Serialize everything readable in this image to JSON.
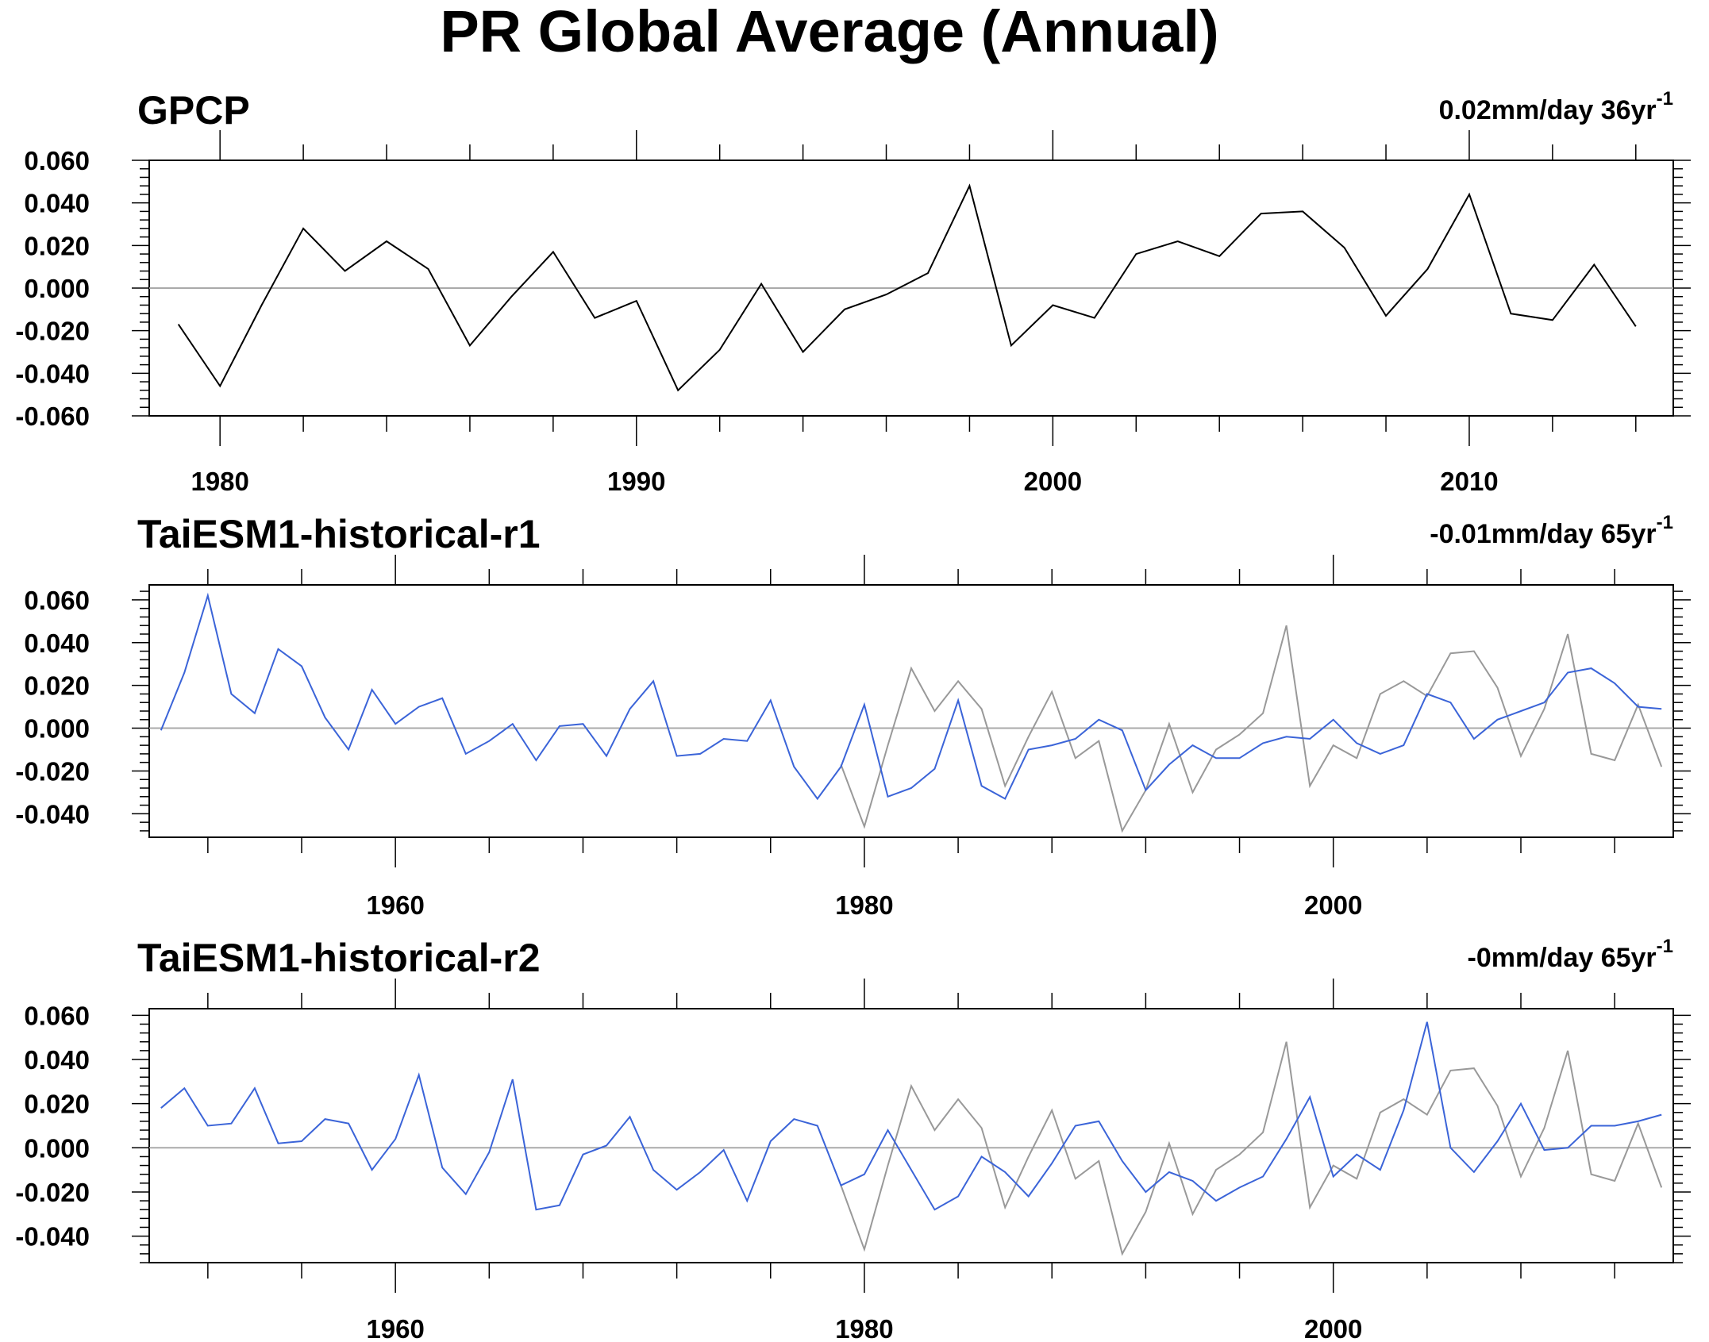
{
  "figure": {
    "title": "PR Global Average (Annual)"
  },
  "colors": {
    "observed": "#000000",
    "reference": "#999999",
    "model": "#3b64d8",
    "axis": "#000000",
    "zero_line": "#aaaaaa"
  },
  "chart_data": [
    {
      "type": "line",
      "title": "GPCP",
      "trend_label": "0.02mm/day 36yr",
      "trend_sup": "-1",
      "xlim": [
        1978.3,
        2014.9
      ],
      "ylim": [
        -0.06,
        0.06
      ],
      "xticks": [
        1980,
        1990,
        2000,
        2010
      ],
      "yticks": [
        "0.060",
        "0.040",
        "0.020",
        "0.000",
        "-0.020",
        "-0.040",
        "-0.060"
      ],
      "series": [
        {
          "role": "observed",
          "x": [
            1979,
            1980,
            1981,
            1982,
            1983,
            1984,
            1985,
            1986,
            1987,
            1988,
            1989,
            1990,
            1991,
            1992,
            1993,
            1994,
            1995,
            1996,
            1997,
            1998,
            1999,
            2000,
            2001,
            2002,
            2003,
            2004,
            2005,
            2006,
            2007,
            2008,
            2009,
            2010,
            2011,
            2012,
            2013,
            2014
          ],
          "values": [
            -0.017,
            -0.046,
            -0.008,
            0.028,
            0.008,
            0.022,
            0.009,
            -0.027,
            -0.004,
            0.017,
            -0.014,
            -0.006,
            -0.048,
            -0.029,
            0.002,
            -0.03,
            -0.01,
            -0.003,
            0.007,
            0.048,
            -0.027,
            -0.008,
            -0.014,
            0.016,
            0.022,
            0.015,
            0.035,
            0.036,
            0.019,
            -0.013,
            0.009,
            0.044,
            -0.012,
            -0.015,
            0.011,
            -0.018
          ]
        }
      ]
    },
    {
      "type": "line",
      "title": "TaiESM1-historical-r1",
      "trend_label": "-0.01mm/day 65yr",
      "trend_sup": "-1",
      "xlim": [
        1949.5,
        2014.5
      ],
      "ylim": [
        -0.051,
        0.067
      ],
      "xticks": [
        1960,
        1980,
        2000
      ],
      "yticks": [
        "0.060",
        "0.040",
        "0.020",
        "0.000",
        "-0.020",
        "-0.040"
      ],
      "series": [
        {
          "role": "reference",
          "x": [
            1979,
            1980,
            1981,
            1982,
            1983,
            1984,
            1985,
            1986,
            1987,
            1988,
            1989,
            1990,
            1991,
            1992,
            1993,
            1994,
            1995,
            1996,
            1997,
            1998,
            1999,
            2000,
            2001,
            2002,
            2003,
            2004,
            2005,
            2006,
            2007,
            2008,
            2009,
            2010,
            2011,
            2012,
            2013,
            2014
          ],
          "values": [
            -0.017,
            -0.046,
            -0.008,
            0.028,
            0.008,
            0.022,
            0.009,
            -0.027,
            -0.004,
            0.017,
            -0.014,
            -0.006,
            -0.048,
            -0.029,
            0.002,
            -0.03,
            -0.01,
            -0.003,
            0.007,
            0.048,
            -0.027,
            -0.008,
            -0.014,
            0.016,
            0.022,
            0.015,
            0.035,
            0.036,
            0.019,
            -0.013,
            0.009,
            0.044,
            -0.012,
            -0.015,
            0.011,
            -0.018
          ]
        },
        {
          "role": "model",
          "x": [
            1950,
            1951,
            1952,
            1953,
            1954,
            1955,
            1956,
            1957,
            1958,
            1959,
            1960,
            1961,
            1962,
            1963,
            1964,
            1965,
            1966,
            1967,
            1968,
            1969,
            1970,
            1971,
            1972,
            1973,
            1974,
            1975,
            1976,
            1977,
            1978,
            1979,
            1980,
            1981,
            1982,
            1983,
            1984,
            1985,
            1986,
            1987,
            1988,
            1989,
            1990,
            1991,
            1992,
            1993,
            1994,
            1995,
            1996,
            1997,
            1998,
            1999,
            2000,
            2001,
            2002,
            2003,
            2004,
            2005,
            2006,
            2007,
            2008,
            2009,
            2010,
            2011,
            2012,
            2013,
            2014
          ],
          "values": [
            -0.001,
            0.026,
            0.062,
            0.016,
            0.007,
            0.037,
            0.029,
            0.005,
            -0.01,
            0.018,
            0.002,
            0.01,
            0.014,
            -0.012,
            -0.006,
            0.002,
            -0.015,
            0.001,
            0.002,
            -0.013,
            0.009,
            0.022,
            -0.013,
            -0.012,
            -0.005,
            -0.006,
            0.013,
            -0.018,
            -0.033,
            -0.018,
            0.011,
            -0.032,
            -0.028,
            -0.019,
            0.013,
            -0.027,
            -0.033,
            -0.01,
            -0.008,
            -0.005,
            0.004,
            -0.001,
            -0.029,
            -0.017,
            -0.008,
            -0.014,
            -0.014,
            -0.007,
            -0.004,
            -0.005,
            0.004,
            -0.007,
            -0.012,
            -0.008,
            0.016,
            0.012,
            -0.005,
            0.004,
            0.008,
            0.012,
            0.026,
            0.028,
            0.021,
            0.01,
            0.009
          ]
        }
      ]
    },
    {
      "type": "line",
      "title": "TaiESM1-historical-r2",
      "trend_label": "-0mm/day 65yr",
      "trend_sup": "-1",
      "xlim": [
        1949.5,
        2014.5
      ],
      "ylim": [
        -0.052,
        0.063
      ],
      "xticks": [
        1960,
        1980,
        2000
      ],
      "yticks": [
        "0.060",
        "0.040",
        "0.020",
        "0.000",
        "-0.020",
        "-0.040"
      ],
      "series": [
        {
          "role": "reference",
          "x": [
            1979,
            1980,
            1981,
            1982,
            1983,
            1984,
            1985,
            1986,
            1987,
            1988,
            1989,
            1990,
            1991,
            1992,
            1993,
            1994,
            1995,
            1996,
            1997,
            1998,
            1999,
            2000,
            2001,
            2002,
            2003,
            2004,
            2005,
            2006,
            2007,
            2008,
            2009,
            2010,
            2011,
            2012,
            2013,
            2014
          ],
          "values": [
            -0.017,
            -0.046,
            -0.008,
            0.028,
            0.008,
            0.022,
            0.009,
            -0.027,
            -0.004,
            0.017,
            -0.014,
            -0.006,
            -0.048,
            -0.029,
            0.002,
            -0.03,
            -0.01,
            -0.003,
            0.007,
            0.048,
            -0.027,
            -0.008,
            -0.014,
            0.016,
            0.022,
            0.015,
            0.035,
            0.036,
            0.019,
            -0.013,
            0.009,
            0.044,
            -0.012,
            -0.015,
            0.011,
            -0.018
          ]
        },
        {
          "role": "model",
          "x": [
            1950,
            1951,
            1952,
            1953,
            1954,
            1955,
            1956,
            1957,
            1958,
            1959,
            1960,
            1961,
            1962,
            1963,
            1964,
            1965,
            1966,
            1967,
            1968,
            1969,
            1970,
            1971,
            1972,
            1973,
            1974,
            1975,
            1976,
            1977,
            1978,
            1979,
            1980,
            1981,
            1982,
            1983,
            1984,
            1985,
            1986,
            1987,
            1988,
            1989,
            1990,
            1991,
            1992,
            1993,
            1994,
            1995,
            1996,
            1997,
            1998,
            1999,
            2000,
            2001,
            2002,
            2003,
            2004,
            2005,
            2006,
            2007,
            2008,
            2009,
            2010,
            2011,
            2012,
            2013,
            2014
          ],
          "values": [
            0.018,
            0.027,
            0.01,
            0.011,
            0.027,
            0.002,
            0.003,
            0.013,
            0.011,
            -0.01,
            0.004,
            0.033,
            -0.009,
            -0.021,
            -0.002,
            0.031,
            -0.028,
            -0.026,
            -0.003,
            0.001,
            0.014,
            -0.01,
            -0.019,
            -0.011,
            -0.001,
            -0.024,
            0.003,
            0.013,
            0.01,
            -0.017,
            -0.012,
            0.008,
            -0.01,
            -0.028,
            -0.022,
            -0.004,
            -0.011,
            -0.022,
            -0.007,
            0.01,
            0.012,
            -0.006,
            -0.02,
            -0.011,
            -0.015,
            -0.024,
            -0.018,
            -0.013,
            0.004,
            0.023,
            -0.013,
            -0.003,
            -0.01,
            0.017,
            0.057,
            0.0,
            -0.011,
            0.003,
            0.02,
            -0.001,
            0.0,
            0.01,
            0.01,
            0.012,
            0.015
          ]
        }
      ]
    }
  ]
}
